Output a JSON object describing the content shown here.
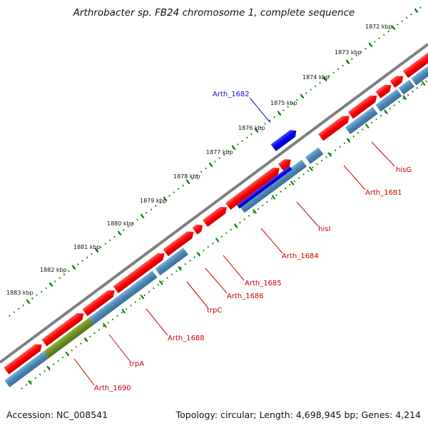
{
  "title": "Arthrobacter sp. FB24 chromosome 1, complete sequence",
  "footer": {
    "accession": "Accession: NC_008541",
    "summary": "Topology: circular; Length: 4,698,945 bp; Genes: 4,214"
  },
  "kbp_labels": [
    "1872 kbp",
    "1873 kbp",
    "1874 kbp",
    "1875 kbp",
    "1876 kbp",
    "1877 kbp",
    "1878 kbp",
    "1879 kbp",
    "1880 kbp",
    "1881 kbp",
    "1882 kbp",
    "1883 kbp"
  ],
  "gene_labels": {
    "arth_1682": "Arth_1682",
    "hisG": "hisG",
    "arth_1681": "Arth_1681",
    "hisI": "hisI",
    "arth_1684": "Arth_1684",
    "arth_1685": "Arth_1685",
    "arth_1686": "Arth_1686",
    "trpC": "trpC",
    "arth_1688": "Arth_1688",
    "trpA": "trpA",
    "arth_1690": "Arth_1690"
  },
  "colors": {
    "backbone": "#7f7f7f",
    "forward_cds": "#ff0000",
    "reverse_cds": "#4a86b5",
    "highlight_cds": "#0000ee",
    "rna": "#6b8e23",
    "tick": "#008000",
    "gene_label": "#cc0000",
    "highlight_label": "#1111cc"
  }
}
